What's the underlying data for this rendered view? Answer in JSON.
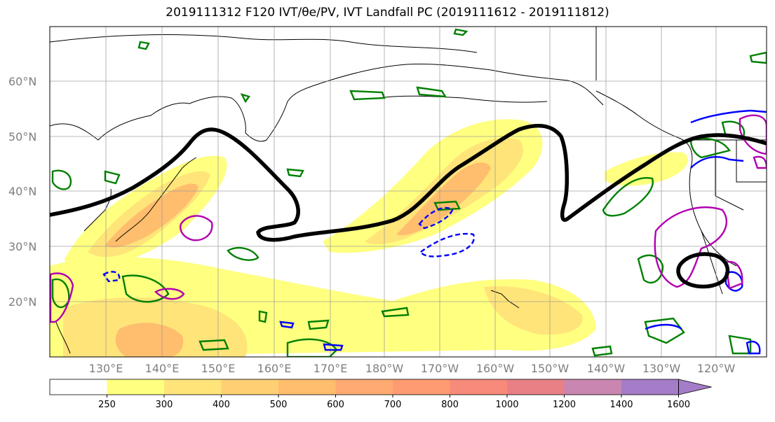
{
  "title": "2019111312 F120 IVT/θe/PV, IVT Landfall PC (2019111612 - 2019111812)",
  "map": {
    "lat_labels": [
      "20°N",
      "30°N",
      "40°N",
      "50°N",
      "60°N"
    ],
    "lon_labels": [
      "130°E",
      "140°E",
      "150°E",
      "160°E",
      "170°E",
      "180°W",
      "170°W",
      "160°W",
      "150°W",
      "140°W",
      "130°W",
      "120°W"
    ],
    "contour_colors": {
      "theta_e": "#000000",
      "pv_positive": "#008000",
      "pv_negative": "#0000ff",
      "landfall_pc": "#b000b0"
    }
  },
  "colorbar": {
    "tick_labels": [
      "250",
      "300",
      "400",
      "500",
      "600",
      "700",
      "800",
      "1000",
      "1200",
      "1400",
      "1600"
    ],
    "colors": [
      "#ffffff",
      "#ffff80",
      "#ffe47a",
      "#ffd073",
      "#ffbd6e",
      "#ffaa73",
      "#ff9b72",
      "#f78a7a",
      "#e88085",
      "#c886b0",
      "#a57cc8"
    ]
  }
}
